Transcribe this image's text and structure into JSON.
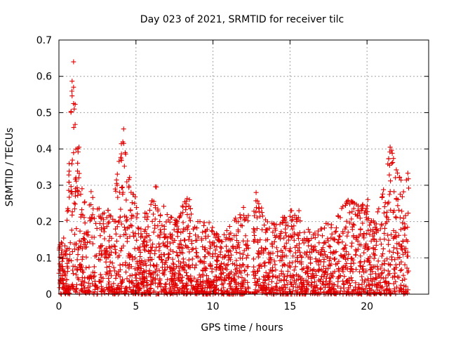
{
  "chart_data": {
    "type": "scatter",
    "title": "Day 023 of 2021, SRMTID for receiver tilc",
    "xlabel": "GPS time / hours",
    "ylabel": "SRMTID / TECUs",
    "xlim": [
      0,
      24
    ],
    "ylim": [
      0,
      0.7
    ],
    "xticks": [
      "0",
      "5",
      "10",
      "15",
      "20"
    ],
    "yticks": [
      "0",
      "0.1",
      "0.2",
      "0.3",
      "0.4",
      "0.5",
      "0.6",
      "0.7"
    ],
    "grid": true,
    "marker": "+",
    "color": "#e00000",
    "series": [
      {
        "name": "SRMTID",
        "envelope": [
          {
            "x": 0.0,
            "y": 0.13
          },
          {
            "x": 0.5,
            "y": 0.17
          },
          {
            "x": 0.9,
            "y": 0.64
          },
          {
            "x": 1.2,
            "y": 0.41
          },
          {
            "x": 1.6,
            "y": 0.25
          },
          {
            "x": 2.2,
            "y": 0.29
          },
          {
            "x": 2.8,
            "y": 0.22
          },
          {
            "x": 3.5,
            "y": 0.24
          },
          {
            "x": 4.2,
            "y": 0.46
          },
          {
            "x": 4.6,
            "y": 0.32
          },
          {
            "x": 5.2,
            "y": 0.23
          },
          {
            "x": 5.8,
            "y": 0.22
          },
          {
            "x": 6.3,
            "y": 0.3
          },
          {
            "x": 7.0,
            "y": 0.22
          },
          {
            "x": 7.7,
            "y": 0.2
          },
          {
            "x": 8.3,
            "y": 0.28
          },
          {
            "x": 9.0,
            "y": 0.2
          },
          {
            "x": 9.7,
            "y": 0.2
          },
          {
            "x": 10.5,
            "y": 0.15
          },
          {
            "x": 11.3,
            "y": 0.2
          },
          {
            "x": 12.0,
            "y": 0.24
          },
          {
            "x": 12.5,
            "y": 0.2
          },
          {
            "x": 12.9,
            "y": 0.28
          },
          {
            "x": 13.5,
            "y": 0.2
          },
          {
            "x": 14.2,
            "y": 0.19
          },
          {
            "x": 14.8,
            "y": 0.23
          },
          {
            "x": 15.6,
            "y": 0.23
          },
          {
            "x": 16.4,
            "y": 0.16
          },
          {
            "x": 17.2,
            "y": 0.19
          },
          {
            "x": 18.0,
            "y": 0.22
          },
          {
            "x": 18.8,
            "y": 0.26
          },
          {
            "x": 19.6,
            "y": 0.24
          },
          {
            "x": 19.9,
            "y": 0.29
          },
          {
            "x": 20.5,
            "y": 0.2
          },
          {
            "x": 21.0,
            "y": 0.27
          },
          {
            "x": 21.5,
            "y": 0.41
          },
          {
            "x": 22.0,
            "y": 0.33
          },
          {
            "x": 22.4,
            "y": 0.3
          },
          {
            "x": 22.7,
            "y": 0.34
          }
        ],
        "highlights": [
          {
            "x": 0.95,
            "y": 0.64
          },
          {
            "x": 0.95,
            "y": 0.57
          },
          {
            "x": 0.95,
            "y": 0.525
          },
          {
            "x": 1.3,
            "y": 0.405
          },
          {
            "x": 4.2,
            "y": 0.455
          },
          {
            "x": 4.3,
            "y": 0.39
          },
          {
            "x": 21.5,
            "y": 0.405
          },
          {
            "x": 12.8,
            "y": 0.28
          }
        ],
        "data_gap_hours": [
          12.3,
          12.6
        ]
      }
    ]
  }
}
